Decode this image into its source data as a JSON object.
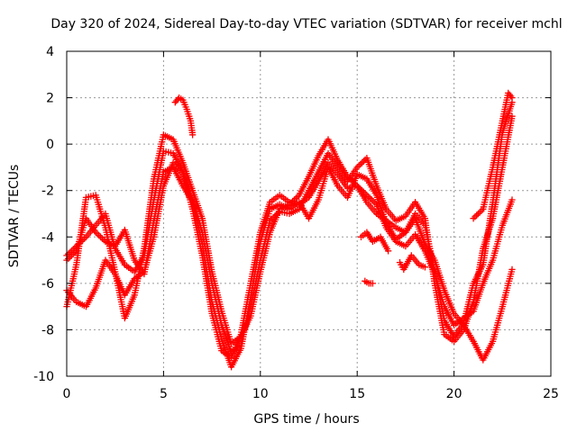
{
  "chart_data": {
    "type": "scatter",
    "title": "Day 320 of 2024, Sidereal Day-to-day VTEC variation (SDTVAR) for receiver mchl",
    "xlabel": "GPS time / hours",
    "ylabel": "SDTVAR / TECUs",
    "xlim": [
      0,
      25
    ],
    "ylim": [
      -10,
      4
    ],
    "xticks": [
      "0",
      "5",
      "10",
      "15",
      "20",
      "25"
    ],
    "yticks": [
      "4",
      "2",
      "0",
      "-2",
      "-4",
      "-6",
      "-8",
      "-10"
    ],
    "xtick_values": [
      0,
      5,
      10,
      15,
      20,
      25
    ],
    "ytick_values": [
      4,
      2,
      0,
      -2,
      -4,
      -6,
      -8,
      -10
    ],
    "grid": true,
    "marker": "plus",
    "color": "#ff0000",
    "series": [
      {
        "name": "trace-1",
        "points": [
          [
            0,
            -5.0
          ],
          [
            0.5,
            -4.6
          ],
          [
            1.0,
            -3.2
          ],
          [
            1.5,
            -3.8
          ],
          [
            2.0,
            -4.2
          ],
          [
            2.5,
            -4.4
          ],
          [
            3.0,
            -3.7
          ],
          [
            3.5,
            -5.0
          ],
          [
            4.0,
            -5.6
          ],
          [
            4.5,
            -3.3
          ],
          [
            5.0,
            -1.2
          ],
          [
            5.5,
            -1.0
          ],
          [
            6.0,
            -1.8
          ],
          [
            6.5,
            -2.5
          ],
          [
            7.0,
            -4.3
          ],
          [
            7.5,
            -6.8
          ],
          [
            8.0,
            -8.4
          ],
          [
            8.5,
            -9.6
          ],
          [
            9.0,
            -8.8
          ],
          [
            9.5,
            -6.6
          ],
          [
            10.0,
            -4.2
          ],
          [
            10.5,
            -2.8
          ],
          [
            11.0,
            -2.6
          ],
          [
            11.5,
            -2.8
          ],
          [
            12.0,
            -2.5
          ],
          [
            12.5,
            -3.2
          ],
          [
            13.0,
            -2.4
          ],
          [
            13.5,
            -1.0
          ],
          [
            14.0,
            -1.8
          ],
          [
            14.5,
            -2.3
          ],
          [
            15.0,
            -1.3
          ],
          [
            15.5,
            -1.5
          ],
          [
            16.0,
            -2.2
          ],
          [
            16.5,
            -3.4
          ],
          [
            17.0,
            -4.1
          ],
          [
            17.5,
            -3.8
          ],
          [
            18.0,
            -3.2
          ],
          [
            18.5,
            -4.3
          ],
          [
            19.0,
            -5.0
          ],
          [
            19.5,
            -6.3
          ],
          [
            20.0,
            -7.3
          ],
          [
            20.5,
            -7.8
          ],
          [
            21.0,
            -8.5
          ],
          [
            21.5,
            -9.3
          ],
          [
            22.0,
            -8.5
          ],
          [
            22.5,
            -7.0
          ],
          [
            23.0,
            -5.4
          ]
        ]
      },
      {
        "name": "trace-2",
        "points": [
          [
            0,
            -6.3
          ],
          [
            0.5,
            -6.8
          ],
          [
            1.0,
            -7.0
          ],
          [
            1.5,
            -6.2
          ],
          [
            2.0,
            -5.0
          ],
          [
            2.5,
            -5.6
          ],
          [
            3.0,
            -6.5
          ],
          [
            3.5,
            -5.8
          ],
          [
            4.0,
            -5.5
          ],
          [
            4.5,
            -4.0
          ],
          [
            5.0,
            -1.8
          ],
          [
            5.5,
            -0.8
          ],
          [
            6.0,
            -1.3
          ],
          [
            6.5,
            -2.8
          ],
          [
            7.0,
            -4.8
          ],
          [
            7.5,
            -7.3
          ],
          [
            8.0,
            -8.9
          ],
          [
            8.5,
            -9.2
          ],
          [
            9.0,
            -8.2
          ],
          [
            9.5,
            -6.0
          ],
          [
            10.0,
            -3.8
          ],
          [
            10.5,
            -2.5
          ],
          [
            11.0,
            -2.2
          ],
          [
            11.5,
            -2.5
          ],
          [
            12.0,
            -2.6
          ],
          [
            12.5,
            -2.3
          ],
          [
            13.0,
            -1.6
          ],
          [
            13.5,
            -0.8
          ],
          [
            14.0,
            -1.3
          ],
          [
            14.5,
            -1.9
          ],
          [
            15.0,
            -1.8
          ],
          [
            15.5,
            -2.2
          ],
          [
            16.0,
            -2.6
          ],
          [
            16.5,
            -3.6
          ],
          [
            17.0,
            -4.2
          ],
          [
            17.5,
            -4.4
          ],
          [
            18.0,
            -3.9
          ],
          [
            18.5,
            -4.6
          ],
          [
            19.0,
            -5.6
          ],
          [
            19.5,
            -7.0
          ],
          [
            20.0,
            -7.8
          ],
          [
            20.5,
            -7.5
          ],
          [
            21.0,
            -7.2
          ],
          [
            21.5,
            -6.0
          ],
          [
            22.0,
            -5.0
          ],
          [
            22.5,
            -3.5
          ],
          [
            23.0,
            -2.4
          ]
        ]
      },
      {
        "name": "trace-3",
        "points": [
          [
            0,
            -7.0
          ],
          [
            0.5,
            -5.2
          ],
          [
            1.0,
            -2.3
          ],
          [
            1.5,
            -2.2
          ],
          [
            2.0,
            -3.6
          ],
          [
            2.5,
            -5.5
          ],
          [
            3.0,
            -7.5
          ],
          [
            3.5,
            -6.5
          ],
          [
            4.0,
            -4.5
          ],
          [
            4.5,
            -1.5
          ],
          [
            5.0,
            0.4
          ],
          [
            5.5,
            0.2
          ],
          [
            6.0,
            -0.8
          ],
          [
            6.5,
            -2.0
          ],
          [
            7.0,
            -3.2
          ],
          [
            7.5,
            -5.5
          ],
          [
            8.0,
            -7.2
          ],
          [
            8.5,
            -8.6
          ],
          [
            9.0,
            -8.3
          ],
          [
            9.5,
            -7.4
          ],
          [
            10.0,
            -5.5
          ],
          [
            10.5,
            -3.8
          ],
          [
            11.0,
            -2.8
          ],
          [
            11.5,
            -2.6
          ],
          [
            12.0,
            -2.2
          ],
          [
            12.5,
            -1.4
          ],
          [
            13.0,
            -0.5
          ],
          [
            13.5,
            0.2
          ],
          [
            14.0,
            -0.7
          ],
          [
            14.5,
            -1.4
          ],
          [
            15.0,
            -1.8
          ],
          [
            15.5,
            -2.5
          ],
          [
            16.0,
            -3.0
          ],
          [
            16.5,
            -3.3
          ],
          [
            17.0,
            -3.6
          ],
          [
            17.5,
            -3.8
          ],
          [
            18.0,
            -3.0
          ],
          [
            18.5,
            -3.5
          ],
          [
            19.0,
            -5.5
          ],
          [
            19.5,
            -7.6
          ],
          [
            20.0,
            -8.3
          ],
          [
            20.5,
            -7.7
          ],
          [
            21.0,
            -6.0
          ],
          [
            21.5,
            -5.2
          ],
          [
            22.0,
            -2.5
          ],
          [
            22.5,
            0.5
          ],
          [
            23.0,
            1.8
          ]
        ]
      },
      {
        "name": "trace-4",
        "points": [
          [
            0,
            -4.8
          ],
          [
            0.5,
            -4.4
          ],
          [
            1.0,
            -4.0
          ],
          [
            1.5,
            -3.5
          ],
          [
            2.0,
            -3.0
          ],
          [
            2.5,
            -4.5
          ],
          [
            3.0,
            -5.2
          ],
          [
            3.5,
            -5.5
          ],
          [
            4.0,
            -4.8
          ],
          [
            4.5,
            -2.4
          ],
          [
            5.0,
            -0.3
          ],
          [
            5.5,
            -0.4
          ],
          [
            6.0,
            -1.2
          ],
          [
            6.5,
            -2.4
          ],
          [
            7.0,
            -3.8
          ],
          [
            7.5,
            -6.0
          ],
          [
            8.0,
            -7.8
          ],
          [
            8.5,
            -9.0
          ],
          [
            9.0,
            -8.6
          ],
          [
            9.5,
            -7.0
          ],
          [
            10.0,
            -5.0
          ],
          [
            10.5,
            -3.3
          ],
          [
            11.0,
            -2.9
          ],
          [
            11.5,
            -3.0
          ],
          [
            12.0,
            -2.8
          ],
          [
            12.5,
            -2.0
          ],
          [
            13.0,
            -1.2
          ],
          [
            13.5,
            -0.4
          ],
          [
            14.0,
            -1.0
          ],
          [
            14.5,
            -1.6
          ],
          [
            15.0,
            -1.0
          ],
          [
            15.5,
            -0.6
          ],
          [
            16.0,
            -1.8
          ],
          [
            16.5,
            -2.8
          ],
          [
            17.0,
            -3.3
          ],
          [
            17.5,
            -3.1
          ],
          [
            18.0,
            -2.5
          ],
          [
            18.5,
            -3.2
          ],
          [
            19.0,
            -6.0
          ],
          [
            19.5,
            -8.2
          ],
          [
            20.0,
            -8.5
          ],
          [
            20.5,
            -8.0
          ],
          [
            21.0,
            -6.8
          ],
          [
            21.5,
            -4.5
          ],
          [
            22.0,
            -3.2
          ],
          [
            22.5,
            -1.0
          ],
          [
            23.0,
            1.2
          ]
        ]
      },
      {
        "name": "trace-5",
        "points": [
          [
            5.6,
            1.8
          ],
          [
            5.8,
            2.0
          ],
          [
            6.0,
            1.9
          ],
          [
            6.2,
            1.5
          ],
          [
            6.4,
            1.0
          ],
          [
            6.5,
            0.4
          ]
        ]
      },
      {
        "name": "trace-6",
        "points": [
          [
            21.0,
            -3.2
          ],
          [
            21.5,
            -2.8
          ],
          [
            22.0,
            -1.0
          ],
          [
            22.5,
            1.0
          ],
          [
            22.8,
            2.2
          ],
          [
            23.0,
            2.0
          ]
        ]
      },
      {
        "name": "trace-7",
        "points": [
          [
            15.4,
            -5.9
          ],
          [
            15.6,
            -6.0
          ],
          [
            15.8,
            -6.0
          ]
        ]
      },
      {
        "name": "trace-8",
        "points": [
          [
            17.2,
            -5.1
          ],
          [
            17.4,
            -5.4
          ],
          [
            17.8,
            -4.8
          ],
          [
            18.2,
            -5.2
          ],
          [
            18.5,
            -5.3
          ]
        ]
      },
      {
        "name": "trace-9",
        "points": [
          [
            15.2,
            -4.0
          ],
          [
            15.5,
            -3.8
          ],
          [
            15.8,
            -4.2
          ],
          [
            16.2,
            -4.0
          ],
          [
            16.6,
            -4.6
          ]
        ]
      }
    ]
  }
}
